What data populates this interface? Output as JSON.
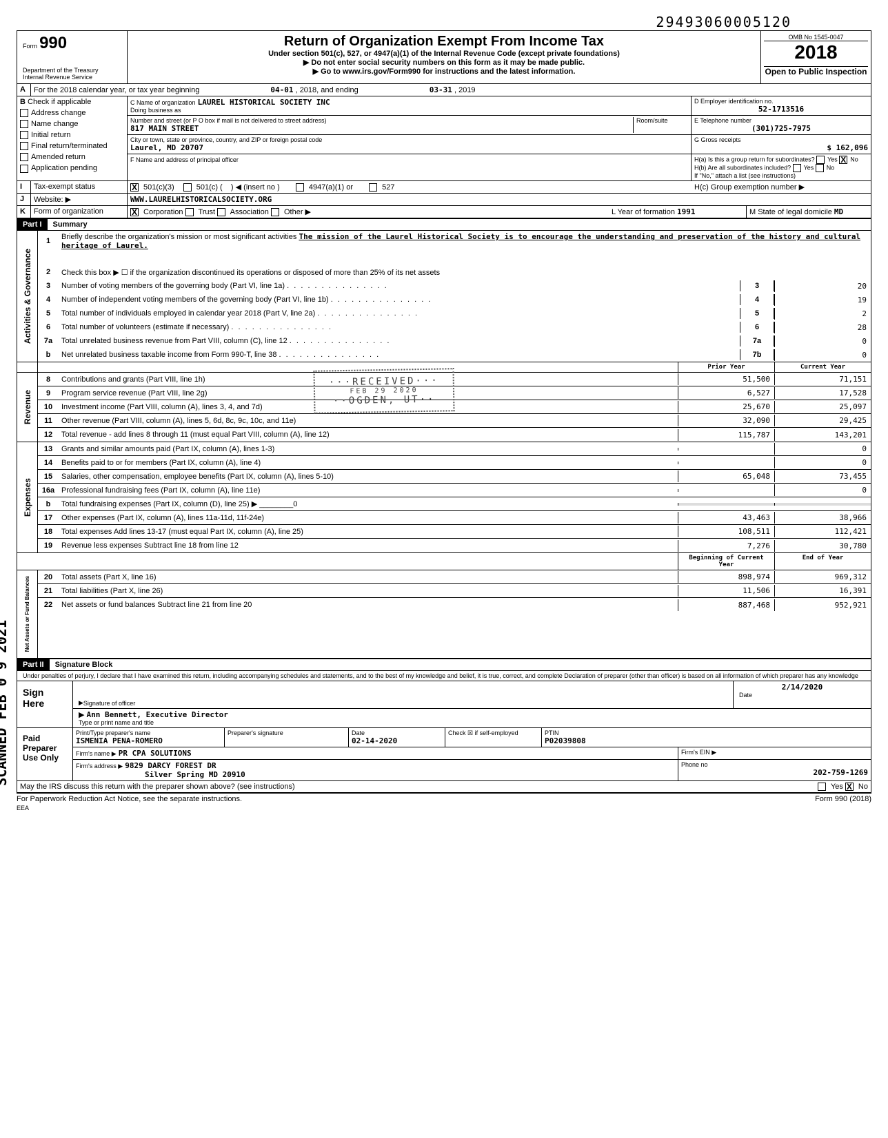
{
  "top_number": "29493060005120",
  "omb_no": "OMB No 1545-0047",
  "form_no": "990",
  "year": "2018",
  "main_title": "Return of Organization Exempt From Income Tax",
  "sub_title": "Under section 501(c), 527, or 4947(a)(1) of the Internal Revenue Code (except private foundations)",
  "warning1": "▶ Do not enter social security numbers on this form as it may be made public.",
  "warning2": "▶ Go to www.irs.gov/Form990 for instructions and the latest information.",
  "dept": "Department of the Treasury",
  "irs": "Internal Revenue Service",
  "open_public": "Open to Public Inspection",
  "calendar_line": "For the 2018 calendar year, or tax year beginning",
  "period_start": "04-01",
  "period_start_year": ", 2018, and ending",
  "period_end": "03-31",
  "period_end_year": ", 2019",
  "section_b": {
    "label": "Check if applicable",
    "items": [
      "Address change",
      "Name change",
      "Initial return",
      "Final return/terminated",
      "Amended return",
      "Application pending"
    ]
  },
  "org_name_label": "C Name of organization",
  "org_name": "LAUREL HISTORICAL SOCIETY INC",
  "dba_label": "Doing business as",
  "address_label": "Number and street (or P O box if mail is not delivered to street address)",
  "address": "817 MAIN STREET",
  "city_label": "City or town, state or province, country, and ZIP or foreign postal code",
  "city": "Laurel, MD 20707",
  "officer_label": "F Name and address of principal officer",
  "room_label": "Room/suite",
  "ein_label": "D Employer identification no.",
  "ein": "52-1713516",
  "phone_label": "E Telephone number",
  "phone": "(301)725-7975",
  "gross_label": "G Gross receipts",
  "gross": "162,096",
  "h_a": "H(a) Is this a group return for subordinates?",
  "h_b": "H(b) Are all subordinates included?",
  "h_note": "If \"No,\" attach a list (see instructions)",
  "h_c": "H(c) Group exemption number ▶",
  "tax_exempt_label": "Tax-exempt status",
  "website_label": "Website: ▶",
  "website": "WWW.LAURELHISTORICALSOCIETY.ORG",
  "form_org_label": "Form of organization",
  "year_formation_label": "L Year of formation",
  "year_formation": "1991",
  "state_label": "M State of legal domicile",
  "state": "MD",
  "part1_label": "Part I",
  "part1_title": "Summary",
  "mission_label": "Briefly describe the organization's mission or most significant activities",
  "mission": "The mission of the Laurel Historical Society is to encourage the understanding and preservation of the history and cultural heritage of Laurel.",
  "line2": "Check this box ▶ ☐ if the organization discontinued its operations or disposed of more than 25% of its net assets",
  "lines_governance": [
    {
      "n": "3",
      "t": "Number of voting members of the governing body (Part VI, line 1a)",
      "box": "3",
      "v": "20"
    },
    {
      "n": "4",
      "t": "Number of independent voting members of the governing body (Part VI, line 1b)",
      "box": "4",
      "v": "19"
    },
    {
      "n": "5",
      "t": "Total number of individuals employed in calendar year 2018 (Part V, line 2a)",
      "box": "5",
      "v": "2"
    },
    {
      "n": "6",
      "t": "Total number of volunteers (estimate if necessary)",
      "box": "6",
      "v": "28"
    },
    {
      "n": "7a",
      "t": "Total unrelated business revenue from Part VIII, column (C), line 12",
      "box": "7a",
      "v": "0"
    },
    {
      "n": "b",
      "t": "Net unrelated business taxable income from Form 990-T, line 38",
      "box": "7b",
      "v": "0"
    }
  ],
  "col_headers": {
    "prior": "Prior Year",
    "current": "Current Year"
  },
  "revenue_lines": [
    {
      "n": "8",
      "t": "Contributions and grants (Part VIII, line 1h)",
      "p": "51,500",
      "c": "71,151"
    },
    {
      "n": "9",
      "t": "Program service revenue (Part VIII, line 2g)",
      "p": "6,527",
      "c": "17,528"
    },
    {
      "n": "10",
      "t": "Investment income (Part VIII, column (A), lines 3, 4, and 7d)",
      "p": "25,670",
      "c": "25,097"
    },
    {
      "n": "11",
      "t": "Other revenue (Part VIII, column (A), lines 5, 6d, 8c, 9c, 10c, and 11e)",
      "p": "32,090",
      "c": "29,425"
    },
    {
      "n": "12",
      "t": "Total revenue - add lines 8 through 11 (must equal Part VIII, column (A), line 12)",
      "p": "115,787",
      "c": "143,201"
    }
  ],
  "expense_lines": [
    {
      "n": "13",
      "t": "Grants and similar amounts paid (Part IX, column (A), lines 1-3)",
      "p": "",
      "c": "0"
    },
    {
      "n": "14",
      "t": "Benefits paid to or for members (Part IX, column (A), line 4)",
      "p": "",
      "c": "0"
    },
    {
      "n": "15",
      "t": "Salaries, other compensation, employee benefits (Part IX, column (A), lines 5-10)",
      "p": "65,048",
      "c": "73,455"
    },
    {
      "n": "16a",
      "t": "Professional fundraising fees (Part IX, column (A), line 11e)",
      "p": "",
      "c": "0"
    },
    {
      "n": "b",
      "t": "Total fundraising expenses (Part IX, column (D), line 25) ▶ ________0",
      "p": "",
      "c": "",
      "shaded": true
    },
    {
      "n": "17",
      "t": "Other expenses (Part IX, column (A), lines 11a-11d, 11f-24e)",
      "p": "43,463",
      "c": "38,966"
    },
    {
      "n": "18",
      "t": "Total expenses Add lines 13-17 (must equal Part IX, column (A), line 25)",
      "p": "108,511",
      "c": "112,421"
    },
    {
      "n": "19",
      "t": "Revenue less expenses Subtract line 18 from line 12",
      "p": "7,276",
      "c": "30,780"
    }
  ],
  "net_headers": {
    "begin": "Beginning of Current Year",
    "end": "End of Year"
  },
  "net_lines": [
    {
      "n": "20",
      "t": "Total assets (Part X, line 16)",
      "p": "898,974",
      "c": "969,312"
    },
    {
      "n": "21",
      "t": "Total liabilities (Part X, line 26)",
      "p": "11,506",
      "c": "16,391"
    },
    {
      "n": "22",
      "t": "Net assets or fund balances Subtract line 21 from line 20",
      "p": "887,468",
      "c": "952,921"
    }
  ],
  "part2_label": "Part II",
  "part2_title": "Signature Block",
  "perjury": "Under penalties of perjury, I declare that I have examined this return, including accompanying schedules and statements, and to the best of my knowledge and belief, it is true, correct, and complete Declaration of preparer (other than officer) is based on all information of which preparer has any knowledge",
  "sign_here": "Sign Here",
  "officer_sig": "Signature of officer",
  "sig_date": "2/14/2020",
  "officer_name": "Ann Bennett, Executive Director",
  "officer_title_label": "Type or print name and title",
  "paid_prep": "Paid Preparer Use Only",
  "preparer_name_label": "Print/Type preparer's name",
  "preparer_name": "ISMENIA PENA-ROMERO",
  "preparer_sig_label": "Preparer's signature",
  "prep_date": "02-14-2020",
  "ptin_label": "PTIN",
  "ptin": "P02039808",
  "check_self": "Check ☒ if self-employed",
  "firm_name_label": "Firm's name ▶",
  "firm_name": "PR CPA SOLUTIONS",
  "firm_ein_label": "Firm's EIN ▶",
  "firm_addr_label": "Firm's address ▶",
  "firm_addr1": "9829 DARCY FOREST DR",
  "firm_addr2": "Silver Spring MD 20910",
  "firm_phone_label": "Phone no",
  "firm_phone": "202-759-1269",
  "discuss": "May the IRS discuss this return with the preparer shown above? (see instructions)",
  "paperwork": "For Paperwork Reduction Act Notice, see the separate instructions.",
  "form_footer": "Form 990 (2018)",
  "eea": "EEA",
  "stamp": {
    "line1": "···RECEIVED···",
    "line2": "FEB 29 2020",
    "line3": "··OGDEN, UT··"
  },
  "scanned": "SCANNED FEB 0 9 2021",
  "sidebars": {
    "gov": "Activities & Governance",
    "rev": "Revenue",
    "exp": "Expenses",
    "net": "Net Assets or Fund Balances"
  }
}
